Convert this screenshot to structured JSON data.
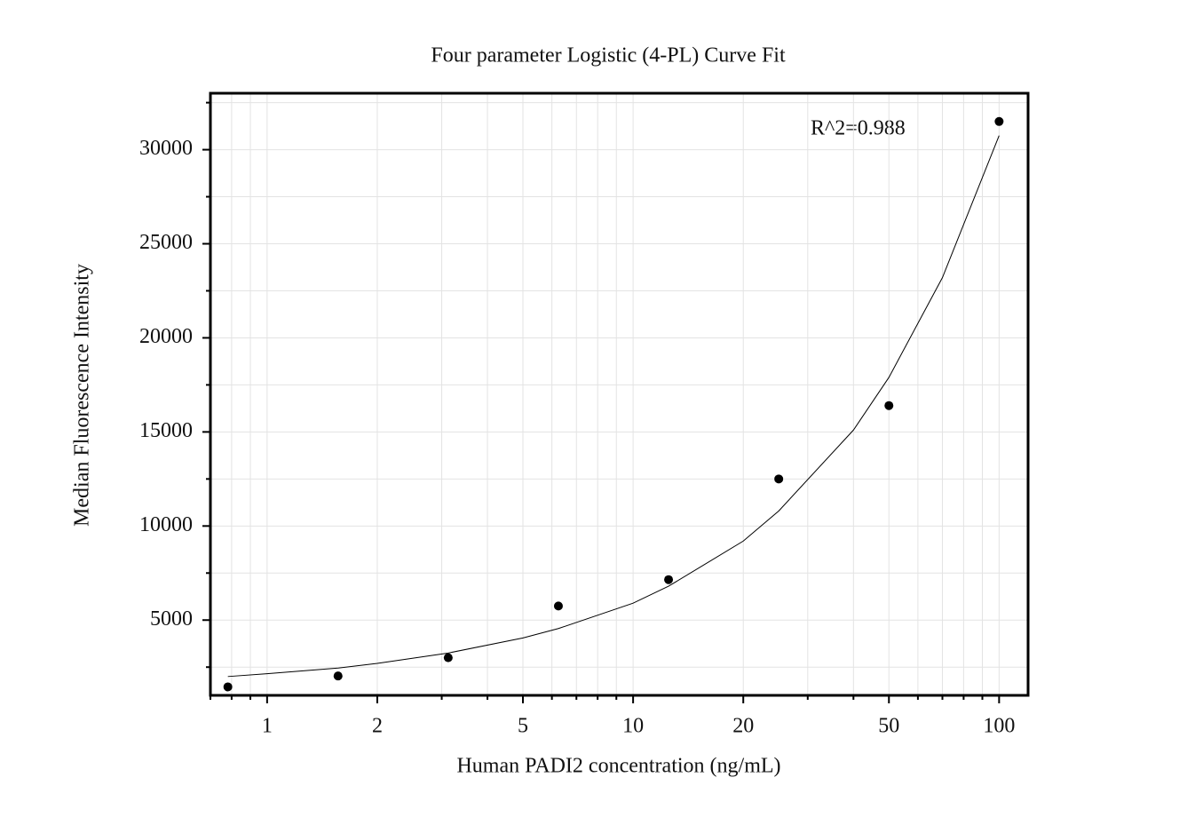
{
  "chart_data": {
    "type": "scatter",
    "title": "Four parameter Logistic (4-PL) Curve Fit",
    "x_label": "Human PADI2 concentration (ng/mL)",
    "y_label": "Median Fluorescence Intensity",
    "annotation": "R^2=0.988",
    "x_scale": "log",
    "x": [
      0.78125,
      1.5625,
      3.125,
      6.25,
      12.5,
      25,
      50,
      100
    ],
    "values": [
      1450,
      2030,
      3000,
      5750,
      7150,
      12500,
      16400,
      31500
    ],
    "color": "#000000",
    "fit_curve": {
      "x": [
        0.78125,
        1,
        1.5625,
        2,
        3.125,
        5,
        6.25,
        10,
        12.5,
        20,
        25,
        40,
        50,
        70,
        100
      ],
      "values": [
        2000,
        2150,
        2450,
        2700,
        3250,
        4050,
        4550,
        5900,
        6800,
        9200,
        10800,
        15100,
        17900,
        23200,
        30750
      ]
    },
    "xlim": [
      0.7,
      120
    ],
    "ylim": [
      1000,
      33000
    ],
    "xticks": [
      1,
      2,
      5,
      10,
      20,
      50,
      100
    ],
    "x_minor_ticks": [
      0.7,
      0.8,
      0.9,
      3,
      4,
      6,
      7,
      8,
      9,
      30,
      40,
      60,
      70,
      80,
      90
    ],
    "yticks": [
      5000,
      10000,
      15000,
      20000,
      25000,
      30000
    ],
    "y_minor_ticks": [
      2500,
      7500,
      12500,
      17500,
      22500,
      27500,
      32500
    ],
    "grid": true
  }
}
